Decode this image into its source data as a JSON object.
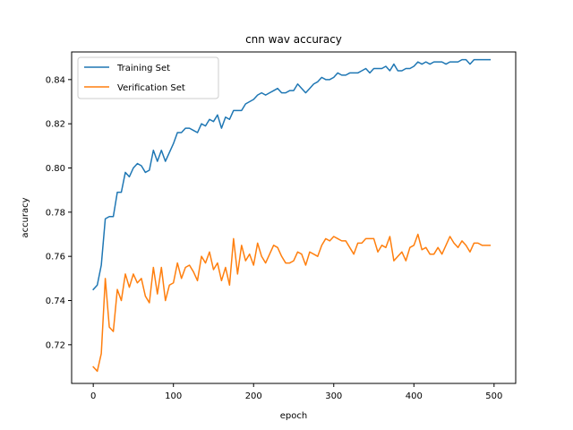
{
  "chart_data": {
    "type": "line",
    "title": "cnn wav accuracy",
    "xlabel": "epoch",
    "ylabel": "accuracy",
    "xlim": [
      -27,
      527
    ],
    "ylim": [
      0.7025,
      0.8525
    ],
    "xticks": [
      0,
      100,
      200,
      300,
      400,
      500
    ],
    "yticks": [
      0.72,
      0.74,
      0.76,
      0.78,
      0.8,
      0.82,
      0.84
    ],
    "ytick_labels": [
      "0.72",
      "0.74",
      "0.76",
      "0.78",
      "0.80",
      "0.82",
      "0.84"
    ],
    "xtick_labels": [
      "0",
      "100",
      "200",
      "300",
      "400",
      "500"
    ],
    "legend_position": "top-left",
    "series": [
      {
        "name": "Training Set",
        "color": "#1f77b4",
        "points": [
          [
            0,
            0.745
          ],
          [
            5,
            0.747
          ],
          [
            10,
            0.756
          ],
          [
            15,
            0.777
          ],
          [
            20,
            0.778
          ],
          [
            25,
            0.778
          ],
          [
            30,
            0.789
          ],
          [
            35,
            0.789
          ],
          [
            40,
            0.798
          ],
          [
            45,
            0.796
          ],
          [
            50,
            0.8
          ],
          [
            55,
            0.802
          ],
          [
            60,
            0.801
          ],
          [
            65,
            0.798
          ],
          [
            70,
            0.799
          ],
          [
            75,
            0.808
          ],
          [
            80,
            0.803
          ],
          [
            85,
            0.808
          ],
          [
            90,
            0.803
          ],
          [
            95,
            0.807
          ],
          [
            100,
            0.811
          ],
          [
            105,
            0.816
          ],
          [
            110,
            0.816
          ],
          [
            115,
            0.818
          ],
          [
            120,
            0.818
          ],
          [
            125,
            0.817
          ],
          [
            130,
            0.816
          ],
          [
            135,
            0.82
          ],
          [
            140,
            0.819
          ],
          [
            145,
            0.822
          ],
          [
            150,
            0.821
          ],
          [
            155,
            0.824
          ],
          [
            160,
            0.818
          ],
          [
            165,
            0.823
          ],
          [
            170,
            0.822
          ],
          [
            175,
            0.826
          ],
          [
            180,
            0.826
          ],
          [
            185,
            0.826
          ],
          [
            190,
            0.829
          ],
          [
            195,
            0.83
          ],
          [
            200,
            0.831
          ],
          [
            205,
            0.833
          ],
          [
            210,
            0.834
          ],
          [
            215,
            0.833
          ],
          [
            220,
            0.834
          ],
          [
            225,
            0.835
          ],
          [
            230,
            0.836
          ],
          [
            235,
            0.834
          ],
          [
            240,
            0.834
          ],
          [
            245,
            0.835
          ],
          [
            250,
            0.835
          ],
          [
            255,
            0.838
          ],
          [
            260,
            0.836
          ],
          [
            265,
            0.834
          ],
          [
            270,
            0.836
          ],
          [
            275,
            0.838
          ],
          [
            280,
            0.839
          ],
          [
            285,
            0.841
          ],
          [
            290,
            0.84
          ],
          [
            295,
            0.84
          ],
          [
            300,
            0.841
          ],
          [
            305,
            0.843
          ],
          [
            310,
            0.842
          ],
          [
            315,
            0.842
          ],
          [
            320,
            0.843
          ],
          [
            325,
            0.843
          ],
          [
            330,
            0.843
          ],
          [
            335,
            0.844
          ],
          [
            340,
            0.845
          ],
          [
            345,
            0.843
          ],
          [
            350,
            0.845
          ],
          [
            355,
            0.845
          ],
          [
            360,
            0.845
          ],
          [
            365,
            0.846
          ],
          [
            370,
            0.844
          ],
          [
            375,
            0.847
          ],
          [
            380,
            0.844
          ],
          [
            385,
            0.844
          ],
          [
            390,
            0.845
          ],
          [
            395,
            0.845
          ],
          [
            400,
            0.846
          ],
          [
            405,
            0.848
          ],
          [
            410,
            0.847
          ],
          [
            415,
            0.848
          ],
          [
            420,
            0.847
          ],
          [
            425,
            0.848
          ],
          [
            430,
            0.848
          ],
          [
            435,
            0.848
          ],
          [
            440,
            0.847
          ],
          [
            445,
            0.848
          ],
          [
            450,
            0.848
          ],
          [
            455,
            0.848
          ],
          [
            460,
            0.849
          ],
          [
            465,
            0.849
          ],
          [
            470,
            0.847
          ],
          [
            475,
            0.849
          ],
          [
            480,
            0.849
          ],
          [
            485,
            0.849
          ],
          [
            490,
            0.849
          ],
          [
            495,
            0.849
          ]
        ]
      },
      {
        "name": "Verification Set",
        "color": "#ff7f0e",
        "points": [
          [
            0,
            0.71
          ],
          [
            5,
            0.708
          ],
          [
            10,
            0.716
          ],
          [
            15,
            0.75
          ],
          [
            20,
            0.728
          ],
          [
            25,
            0.726
          ],
          [
            30,
            0.745
          ],
          [
            35,
            0.74
          ],
          [
            40,
            0.752
          ],
          [
            45,
            0.746
          ],
          [
            50,
            0.752
          ],
          [
            55,
            0.748
          ],
          [
            60,
            0.75
          ],
          [
            65,
            0.742
          ],
          [
            70,
            0.739
          ],
          [
            75,
            0.755
          ],
          [
            80,
            0.743
          ],
          [
            85,
            0.755
          ],
          [
            90,
            0.74
          ],
          [
            95,
            0.747
          ],
          [
            100,
            0.748
          ],
          [
            105,
            0.757
          ],
          [
            110,
            0.75
          ],
          [
            115,
            0.755
          ],
          [
            120,
            0.756
          ],
          [
            125,
            0.753
          ],
          [
            130,
            0.749
          ],
          [
            135,
            0.76
          ],
          [
            140,
            0.757
          ],
          [
            145,
            0.762
          ],
          [
            150,
            0.754
          ],
          [
            155,
            0.757
          ],
          [
            160,
            0.749
          ],
          [
            165,
            0.755
          ],
          [
            170,
            0.747
          ],
          [
            175,
            0.768
          ],
          [
            180,
            0.752
          ],
          [
            185,
            0.765
          ],
          [
            190,
            0.758
          ],
          [
            195,
            0.761
          ],
          [
            200,
            0.756
          ],
          [
            205,
            0.766
          ],
          [
            210,
            0.76
          ],
          [
            215,
            0.757
          ],
          [
            220,
            0.761
          ],
          [
            225,
            0.765
          ],
          [
            230,
            0.764
          ],
          [
            235,
            0.76
          ],
          [
            240,
            0.757
          ],
          [
            245,
            0.757
          ],
          [
            250,
            0.758
          ],
          [
            255,
            0.762
          ],
          [
            260,
            0.761
          ],
          [
            265,
            0.756
          ],
          [
            270,
            0.762
          ],
          [
            275,
            0.761
          ],
          [
            280,
            0.76
          ],
          [
            285,
            0.765
          ],
          [
            290,
            0.768
          ],
          [
            295,
            0.767
          ],
          [
            300,
            0.769
          ],
          [
            305,
            0.768
          ],
          [
            310,
            0.767
          ],
          [
            315,
            0.767
          ],
          [
            320,
            0.764
          ],
          [
            325,
            0.761
          ],
          [
            330,
            0.766
          ],
          [
            335,
            0.766
          ],
          [
            340,
            0.768
          ],
          [
            345,
            0.768
          ],
          [
            350,
            0.768
          ],
          [
            355,
            0.762
          ],
          [
            360,
            0.765
          ],
          [
            365,
            0.764
          ],
          [
            370,
            0.769
          ],
          [
            375,
            0.758
          ],
          [
            380,
            0.76
          ],
          [
            385,
            0.762
          ],
          [
            390,
            0.758
          ],
          [
            395,
            0.764
          ],
          [
            400,
            0.765
          ],
          [
            405,
            0.77
          ],
          [
            410,
            0.763
          ],
          [
            415,
            0.764
          ],
          [
            420,
            0.761
          ],
          [
            425,
            0.761
          ],
          [
            430,
            0.764
          ],
          [
            435,
            0.761
          ],
          [
            440,
            0.765
          ],
          [
            445,
            0.769
          ],
          [
            450,
            0.766
          ],
          [
            455,
            0.764
          ],
          [
            460,
            0.767
          ],
          [
            465,
            0.765
          ],
          [
            470,
            0.762
          ],
          [
            475,
            0.766
          ],
          [
            480,
            0.766
          ],
          [
            485,
            0.765
          ],
          [
            490,
            0.765
          ],
          [
            495,
            0.765
          ]
        ]
      }
    ]
  }
}
